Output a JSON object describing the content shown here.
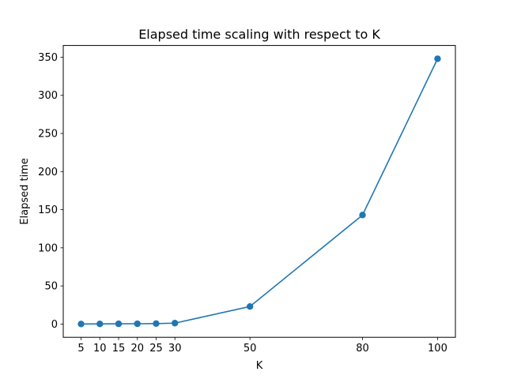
{
  "chart_data": {
    "type": "line",
    "title": "Elapsed time scaling with respect to K",
    "xlabel": "K",
    "ylabel": "Elapsed time",
    "x": [
      5,
      10,
      15,
      20,
      25,
      30,
      50,
      80,
      100
    ],
    "series": [
      {
        "values": [
          0.1,
          0.2,
          0.3,
          0.4,
          0.6,
          1.2,
          23,
          143,
          348
        ],
        "color": "#1f77b4",
        "marker": "circle"
      }
    ],
    "xticks": [
      5,
      10,
      15,
      20,
      25,
      30,
      50,
      80,
      100
    ],
    "yticks": [
      0,
      50,
      100,
      150,
      200,
      250,
      300,
      350
    ],
    "xlim": [
      0.25,
      104.75
    ],
    "ylim": [
      -17.4,
      365.4
    ],
    "grid": false,
    "legend": "none"
  }
}
